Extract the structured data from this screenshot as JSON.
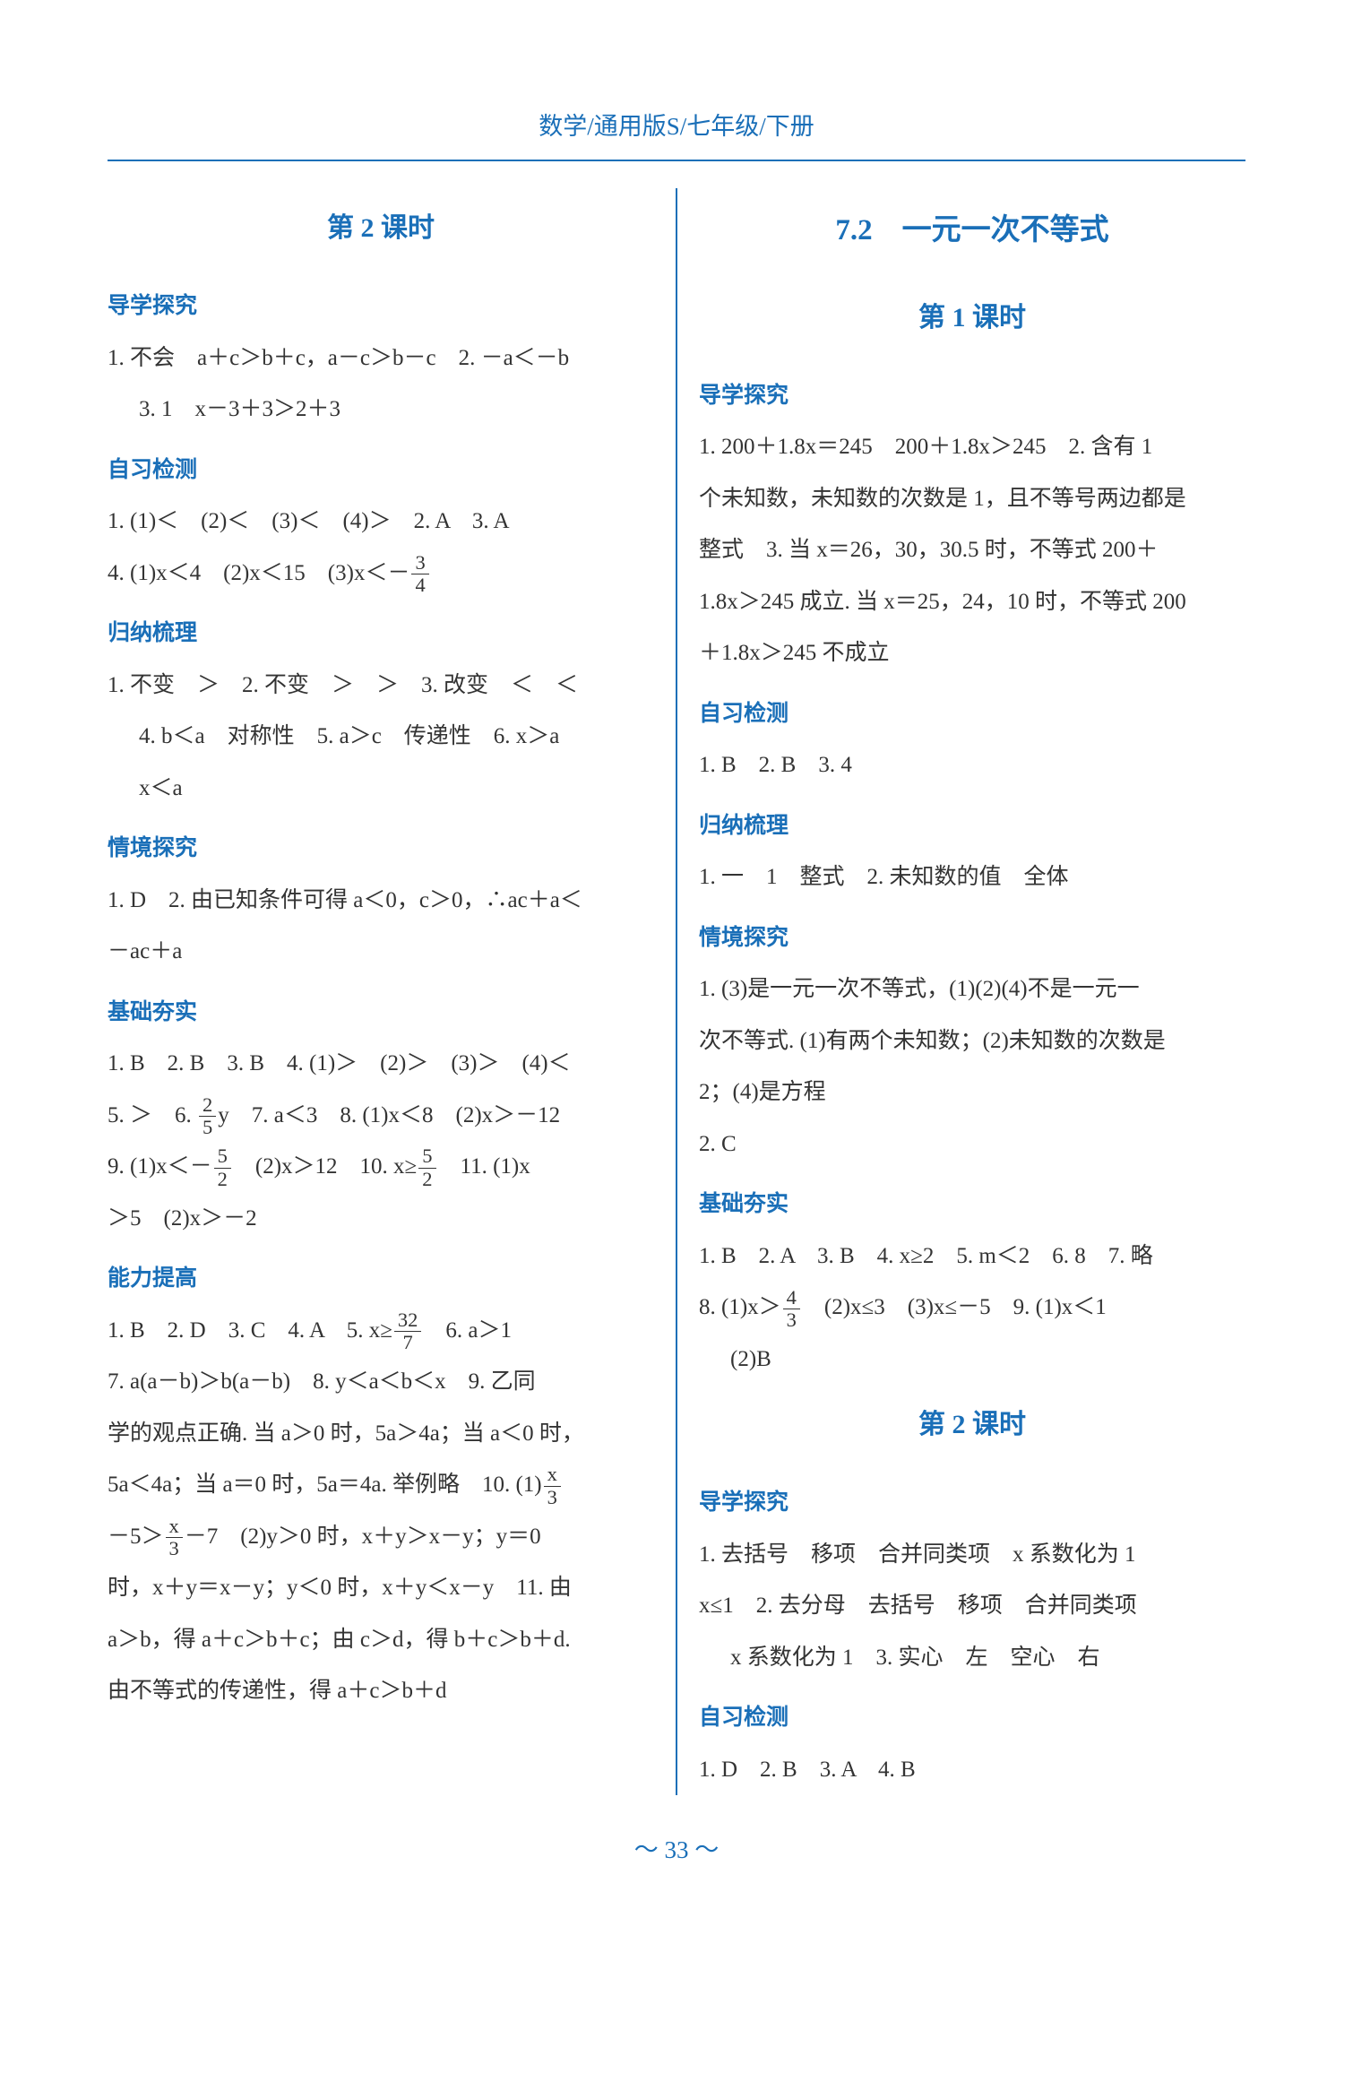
{
  "header": "数学/通用版S/七年级/下册",
  "pageNumber": "～ 33 ～",
  "colors": {
    "accent": "#1a6fb8",
    "text": "#333333",
    "background": "#ffffff"
  },
  "left": {
    "lesson": "第 2 课时",
    "s1": {
      "title": "导学探究",
      "l1": "1. 不会　a＋c＞b＋c，a－c＞b－c　2. －a＜－b",
      "l2": "3. 1　x－3＋3＞2＋3"
    },
    "s2": {
      "title": "自习检测",
      "l1": "1. (1)＜　(2)＜　(3)＜　(4)＞　2. A　3. A",
      "l2a": "4. (1)x＜4　(2)x＜15　(3)x＜－",
      "l2f": {
        "num": "3",
        "den": "4"
      }
    },
    "s3": {
      "title": "归纳梳理",
      "l1": "1. 不变　＞　2. 不变　＞　＞　3. 改变　＜　＜",
      "l2": "4. b＜a　对称性　5. a＞c　传递性　6. x＞a",
      "l3": "x＜a"
    },
    "s4": {
      "title": "情境探究",
      "l1": "1. D　2. 由已知条件可得 a＜0，c＞0，∴ac＋a＜",
      "l2": "－ac＋a"
    },
    "s5": {
      "title": "基础夯实",
      "l1": "1. B　2. B　3. B　4. (1)＞　(2)＞　(3)＞　(4)＜",
      "l2a": "5. ＞　6. ",
      "l2f": {
        "num": "2",
        "den": "5"
      },
      "l2b": "y　7. a＜3　8. (1)x＜8　(2)x＞－12",
      "l3a": "9. (1)x＜－",
      "l3f1": {
        "num": "5",
        "den": "2"
      },
      "l3b": "　(2)x＞12　10. x≥",
      "l3f2": {
        "num": "5",
        "den": "2"
      },
      "l3c": "　11. (1)x",
      "l4": "＞5　(2)x＞－2"
    },
    "s6": {
      "title": "能力提高",
      "l1a": "1. B　2. D　3. C　4. A　5. x≥",
      "l1f": {
        "num": "32",
        "den": "7"
      },
      "l1b": "　6. a＞1",
      "l2": "7. a(a－b)＞b(a－b)　8. y＜a＜b＜x　9. 乙同",
      "l3": "学的观点正确. 当 a＞0 时，5a＞4a；当 a＜0 时，",
      "l4a": "5a＜4a；当 a＝0 时，5a＝4a. 举例略　10. (1)",
      "l4f": {
        "num": "x",
        "den": "3"
      },
      "l5a": "－5＞",
      "l5f": {
        "num": "x",
        "den": "3"
      },
      "l5b": "－7　(2)y＞0 时，x＋y＞x－y；y＝0",
      "l6": "时，x＋y＝x－y；y＜0 时，x＋y＜x－y　11. 由",
      "l7": "a＞b，得 a＋c＞b＋c；由 c＞d，得 b＋c＞b＋d.",
      "l8": "由不等式的传递性，得 a＋c＞b＋d"
    }
  },
  "right": {
    "chapter": "7.2　一元一次不等式",
    "lesson1": "第 1 课时",
    "r1": {
      "title": "导学探究",
      "l1": "1. 200＋1.8x＝245　200＋1.8x＞245　2. 含有 1",
      "l2": "个未知数，未知数的次数是 1，且不等号两边都是",
      "l3": "整式　3. 当 x＝26，30，30.5 时，不等式 200＋",
      "l4": "1.8x＞245 成立. 当 x＝25，24，10 时，不等式 200",
      "l5": "＋1.8x＞245 不成立"
    },
    "r2": {
      "title": "自习检测",
      "l1": "1. B　2. B　3. 4"
    },
    "r3": {
      "title": "归纳梳理",
      "l1": "1. 一　1　整式　2. 未知数的值　全体"
    },
    "r4": {
      "title": "情境探究",
      "l1": "1. (3)是一元一次不等式，(1)(2)(4)不是一元一",
      "l2": "次不等式. (1)有两个未知数；(2)未知数的次数是",
      "l3": "2；(4)是方程",
      "l4": "2. C"
    },
    "r5": {
      "title": "基础夯实",
      "l1": "1. B　2. A　3. B　4. x≥2　5. m＜2　6. 8　7. 略",
      "l2a": "8. (1)x＞",
      "l2f": {
        "num": "4",
        "den": "3"
      },
      "l2b": "　(2)x≤3　(3)x≤－5　9. (1)x＜1",
      "l3": "(2)B"
    },
    "lesson2": "第 2 课时",
    "r6": {
      "title": "导学探究",
      "l1": "1. 去括号　移项　合并同类项　x 系数化为 1",
      "l2": "x≤1　2. 去分母　去括号　移项　合并同类项",
      "l3": "x 系数化为 1　3. 实心　左　空心　右"
    },
    "r7": {
      "title": "自习检测",
      "l1": "1. D　2. B　3. A　4. B"
    }
  }
}
